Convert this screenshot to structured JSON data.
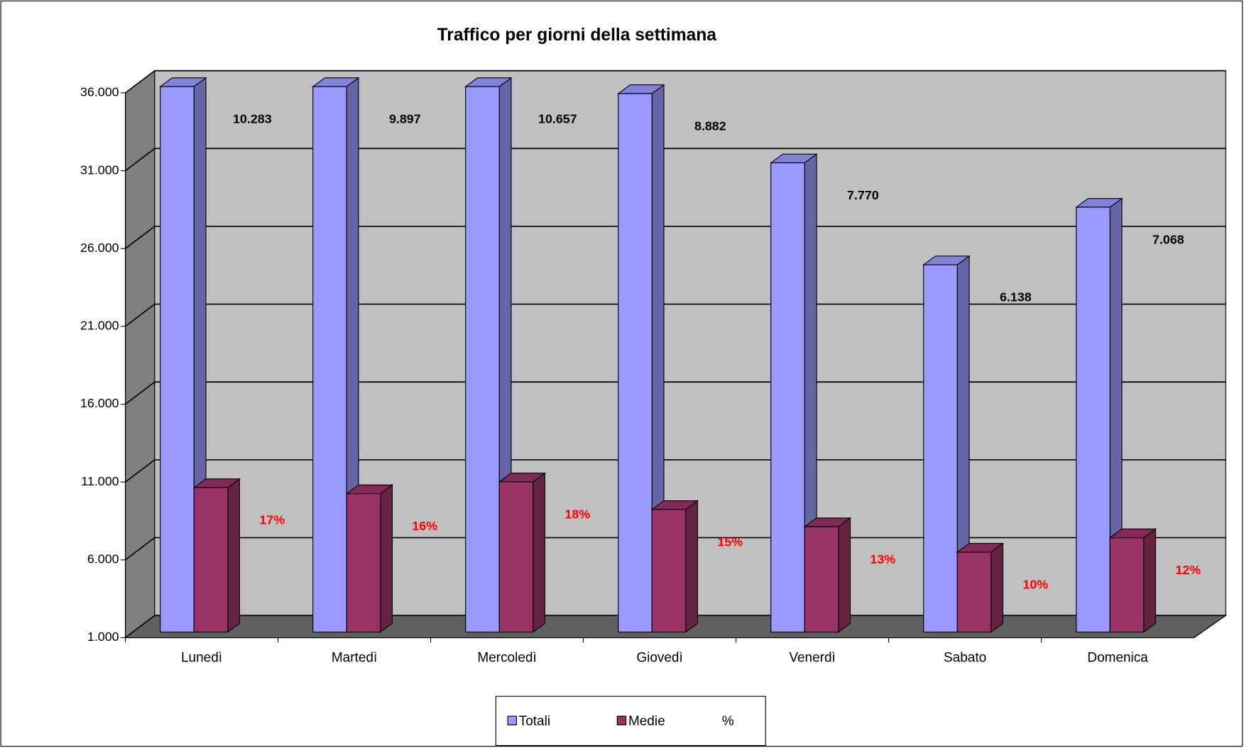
{
  "chart_data": {
    "type": "bar3d",
    "title": "Traffico per giorni della settimana",
    "categories": [
      "Lunedì",
      "Martedì",
      "Mercoledì",
      "Giovedì",
      "Venerdì",
      "Sabato",
      "Domenica"
    ],
    "series": [
      {
        "name": "Totali",
        "color": "#9999ff",
        "values": [
          36050,
          36050,
          36050,
          35600,
          31150,
          24600,
          28300
        ]
      },
      {
        "name": "Medie",
        "color": "#993366",
        "values": [
          10283,
          9897,
          10657,
          8882,
          7770,
          6138,
          7068
        ],
        "value_labels": [
          "10.283",
          "9.897",
          "10.657",
          "8.882",
          "7.770",
          "6.138",
          "7.068"
        ]
      },
      {
        "name": "%",
        "color": "#ff0000",
        "values": [
          17,
          16,
          18,
          15,
          13,
          10,
          12
        ],
        "value_labels": [
          "17%",
          "16%",
          "18%",
          "15%",
          "13%",
          "10%",
          "12%"
        ]
      }
    ],
    "ylim": [
      1000,
      36000
    ],
    "yticks": [
      {
        "value": 1000,
        "label": "1.000"
      },
      {
        "value": 6000,
        "label": "6.000"
      },
      {
        "value": 11000,
        "label": "11.000"
      },
      {
        "value": 16000,
        "label": "16.000"
      },
      {
        "value": 21000,
        "label": "21.000"
      },
      {
        "value": 26000,
        "label": "26.000"
      },
      {
        "value": 31000,
        "label": "31.000"
      },
      {
        "value": 36000,
        "label": "36.000"
      }
    ],
    "grid": true,
    "legend": "bottom"
  }
}
